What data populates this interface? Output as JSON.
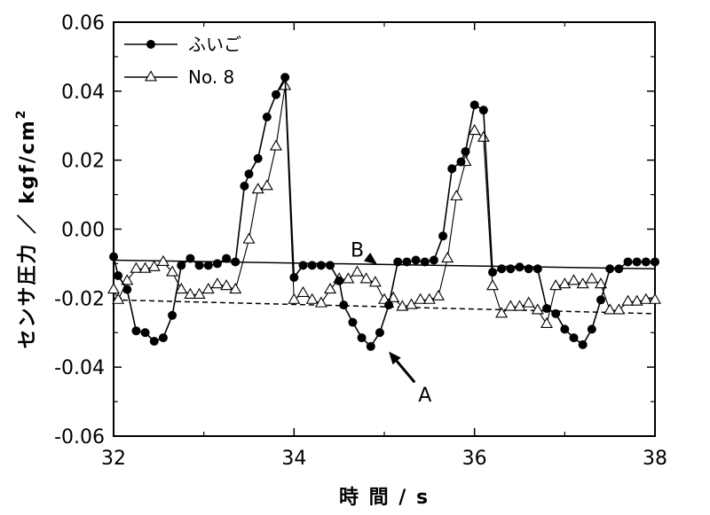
{
  "chart_data": {
    "type": "line",
    "xlabel": "時 間 / s",
    "ylabel": "センサ圧力 / kgf/cm 2",
    "ylabel_parts": {
      "main": "センサ圧力 ／ kgf/cm",
      "sup": "2"
    },
    "xlim": [
      32,
      38
    ],
    "ylim": [
      -0.06,
      0.06
    ],
    "x_ticks": [
      32,
      34,
      36,
      38
    ],
    "x_tick_labels": [
      "32",
      "34",
      "36",
      "38"
    ],
    "y_ticks": [
      0.06,
      0.04,
      0.02,
      0.0,
      -0.02,
      -0.04,
      -0.06
    ],
    "y_tick_labels": [
      "0.06",
      "0.04",
      "0.02",
      "0.00",
      "-0.02",
      "-0.04",
      "-0.06"
    ],
    "legend_position": "top-left",
    "grid": false,
    "series": [
      {
        "name": "ふいご",
        "marker": "filled-circle",
        "x": [
          32.0,
          32.05,
          32.15,
          32.25,
          32.35,
          32.45,
          32.55,
          32.65,
          32.75,
          32.85,
          32.95,
          33.05,
          33.15,
          33.25,
          33.35,
          33.45,
          33.5,
          33.6,
          33.7,
          33.8,
          33.9,
          34.0,
          34.1,
          34.2,
          34.3,
          34.4,
          34.5,
          34.55,
          34.65,
          34.75,
          34.85,
          34.95,
          35.05,
          35.15,
          35.25,
          35.35,
          35.45,
          35.55,
          35.65,
          35.75,
          35.85,
          35.9,
          36.0,
          36.1,
          36.2,
          36.3,
          36.4,
          36.5,
          36.6,
          36.7,
          36.8,
          36.9,
          37.0,
          37.1,
          37.2,
          37.3,
          37.4,
          37.5,
          37.6,
          37.7,
          37.8,
          37.9,
          38.0
        ],
        "y": [
          -0.008,
          -0.0135,
          -0.0175,
          -0.0295,
          -0.03,
          -0.0325,
          -0.0315,
          -0.025,
          -0.0105,
          -0.0085,
          -0.0105,
          -0.0105,
          -0.01,
          -0.0085,
          -0.0095,
          0.0125,
          0.016,
          0.0205,
          0.0325,
          0.039,
          0.044,
          -0.014,
          -0.0105,
          -0.0105,
          -0.0105,
          -0.0105,
          -0.015,
          -0.022,
          -0.027,
          -0.0315,
          -0.034,
          -0.03,
          -0.022,
          -0.0095,
          -0.0095,
          -0.009,
          -0.0095,
          -0.009,
          -0.002,
          0.0175,
          0.0195,
          0.0225,
          0.036,
          0.0345,
          -0.0125,
          -0.0115,
          -0.0115,
          -0.011,
          -0.0115,
          -0.0115,
          -0.023,
          -0.0245,
          -0.029,
          -0.0315,
          -0.0335,
          -0.029,
          -0.0205,
          -0.0115,
          -0.0115,
          -0.0095,
          -0.0095,
          -0.0095,
          -0.0095
        ]
      },
      {
        "name": "No. 8",
        "marker": "open-triangle",
        "x": [
          32.0,
          32.05,
          32.15,
          32.25,
          32.35,
          32.45,
          32.55,
          32.65,
          32.75,
          32.85,
          32.95,
          33.05,
          33.15,
          33.25,
          33.35,
          33.5,
          33.6,
          33.7,
          33.8,
          33.9,
          34.0,
          34.1,
          34.2,
          34.3,
          34.4,
          34.5,
          34.6,
          34.7,
          34.8,
          34.9,
          35.0,
          35.1,
          35.2,
          35.3,
          35.4,
          35.5,
          35.6,
          35.7,
          35.8,
          35.9,
          36.0,
          36.1,
          36.2,
          36.3,
          36.4,
          36.5,
          36.6,
          36.7,
          36.8,
          36.9,
          37.0,
          37.1,
          37.2,
          37.3,
          37.4,
          37.5,
          37.6,
          37.7,
          37.8,
          37.9,
          38.0
        ],
        "y": [
          -0.0175,
          -0.0205,
          -0.015,
          -0.0115,
          -0.0115,
          -0.011,
          -0.0095,
          -0.0125,
          -0.0175,
          -0.019,
          -0.019,
          -0.0175,
          -0.016,
          -0.0165,
          -0.0175,
          -0.003,
          0.0115,
          0.0125,
          0.024,
          0.0415,
          -0.0205,
          -0.0185,
          -0.0205,
          -0.0215,
          -0.0175,
          -0.0145,
          -0.0145,
          -0.0125,
          -0.0145,
          -0.0155,
          -0.0205,
          -0.02,
          -0.0225,
          -0.022,
          -0.0205,
          -0.0205,
          -0.0195,
          -0.0085,
          0.0095,
          0.0195,
          0.0285,
          0.0265,
          -0.0165,
          -0.0245,
          -0.0225,
          -0.0225,
          -0.0215,
          -0.0235,
          -0.0275,
          -0.0165,
          -0.016,
          -0.015,
          -0.016,
          -0.0145,
          -0.016,
          -0.0235,
          -0.0235,
          -0.021,
          -0.021,
          -0.0205,
          -0.0205
        ]
      }
    ],
    "reference_lines": [
      {
        "label": "B",
        "style": "solid",
        "x": [
          32,
          38
        ],
        "y": [
          -0.009,
          -0.0115
        ]
      },
      {
        "label": "A",
        "style": "dashed",
        "x": [
          32,
          38
        ],
        "y": [
          -0.0205,
          -0.0245
        ]
      }
    ],
    "annotations": [
      {
        "text": "B",
        "text_at": [
          34.7,
          -0.008
        ],
        "arrow_to": [
          34.92,
          -0.0102
        ]
      },
      {
        "text": "A",
        "text_at": [
          35.45,
          -0.05
        ],
        "arrow_to": [
          35.05,
          -0.0355
        ]
      }
    ]
  }
}
